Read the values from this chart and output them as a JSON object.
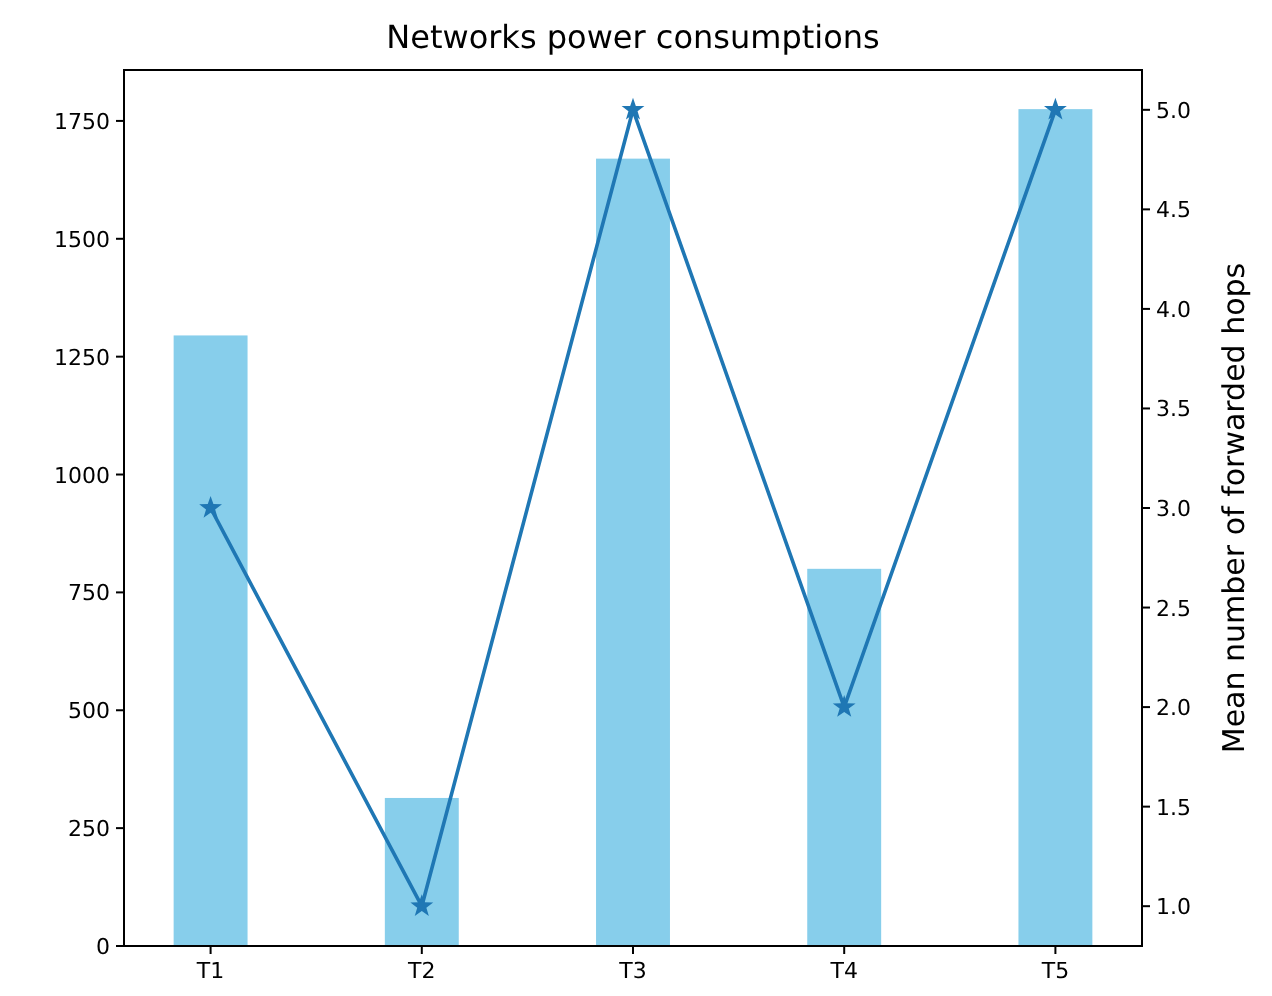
{
  "chart_data": {
    "type": "bar",
    "title": "Networks power consumptions",
    "y2label": "Mean number of forwarded hops",
    "categories": [
      "T1",
      "T2",
      "T3",
      "T4",
      "T5"
    ],
    "series": [
      {
        "color": "#87ceeb",
        "values": [
          1295,
          314,
          1670,
          800,
          1775
        ]
      },
      {
        "type": "line",
        "axis": "y2",
        "color": "#1f77b4",
        "values": [
          3.0,
          1.0,
          5.0,
          2.0,
          5.0
        ],
        "marker": "star"
      }
    ],
    "ylim": [
      0,
      1858
    ],
    "yticks": [
      0,
      250,
      500,
      750,
      1000,
      1250,
      1500,
      1750
    ],
    "y2lim": [
      0.8,
      5.2
    ],
    "y2ticks": [
      {
        "value": 1,
        "label": "1.0"
      },
      {
        "value": 1.5,
        "label": "1.5"
      },
      {
        "value": 2,
        "label": "2.0"
      },
      {
        "value": 2.5,
        "label": "2.5"
      },
      {
        "value": 3,
        "label": "3.0"
      },
      {
        "value": 3.5,
        "label": "3.5"
      },
      {
        "value": 4,
        "label": "4.0"
      },
      {
        "value": 4.5,
        "label": "4.5"
      },
      {
        "value": 5,
        "label": "5.0"
      }
    ],
    "grid": false
  }
}
